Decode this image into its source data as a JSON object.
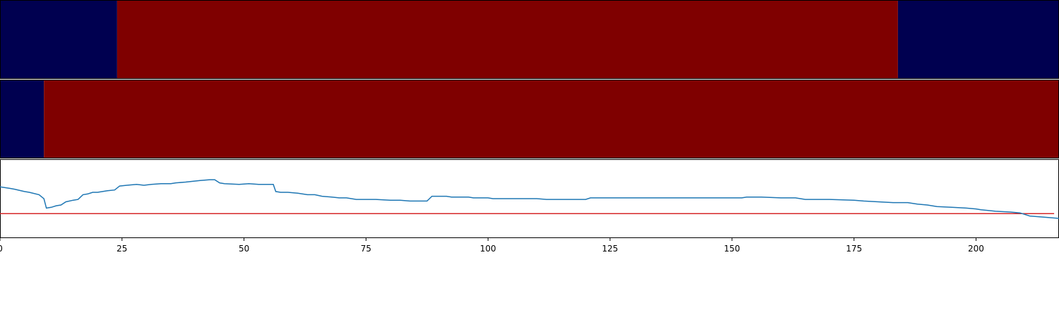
{
  "chart_data": [
    {
      "type": "heatmap",
      "colors": {
        "low": "#000050",
        "high": "#7f0000"
      },
      "xlim": [
        0,
        217
      ],
      "segments": [
        {
          "start": 0,
          "end": 24,
          "state": "low"
        },
        {
          "start": 24,
          "end": 184,
          "state": "high"
        },
        {
          "start": 184,
          "end": 217,
          "state": "low"
        }
      ]
    },
    {
      "type": "heatmap",
      "colors": {
        "low": "#000050",
        "high": "#7f0000"
      },
      "xlim": [
        0,
        217
      ],
      "segments": [
        {
          "start": 0,
          "end": 9,
          "state": "low"
        },
        {
          "start": 9,
          "end": 217,
          "state": "high"
        }
      ]
    },
    {
      "type": "line",
      "xlim": [
        0,
        217
      ],
      "ylim": [
        0,
        100
      ],
      "xticks": [
        0,
        25,
        50,
        75,
        100,
        125,
        150,
        175,
        200
      ],
      "grid": false,
      "series": [
        {
          "color": "#1f77b4",
          "points": [
            [
              0,
              65
            ],
            [
              2,
              63
            ],
            [
              3,
              62
            ],
            [
              5,
              59
            ],
            [
              6,
              58
            ],
            [
              8,
              55
            ],
            [
              9,
              50
            ],
            [
              9.5,
              38
            ],
            [
              10.5,
              39
            ],
            [
              11.5,
              41
            ],
            [
              12.5,
              42
            ],
            [
              13.5,
              46
            ],
            [
              15,
              48
            ],
            [
              16,
              49
            ],
            [
              17,
              55
            ],
            [
              18,
              56
            ],
            [
              19,
              58
            ],
            [
              20,
              58
            ],
            [
              21,
              59
            ],
            [
              22,
              60
            ],
            [
              23.5,
              61
            ],
            [
              24.5,
              66
            ],
            [
              26,
              67
            ],
            [
              28,
              68
            ],
            [
              29.5,
              67
            ],
            [
              31,
              68
            ],
            [
              33,
              69
            ],
            [
              35,
              69
            ],
            [
              36,
              70
            ],
            [
              38,
              71
            ],
            [
              39.5,
              72
            ],
            [
              41,
              73
            ],
            [
              43,
              74
            ],
            [
              44,
              74
            ],
            [
              45,
              70
            ],
            [
              46,
              69
            ],
            [
              49,
              68
            ],
            [
              51,
              69
            ],
            [
              53,
              68
            ],
            [
              56,
              68
            ],
            [
              56.5,
              59
            ],
            [
              57.5,
              58
            ],
            [
              59,
              58
            ],
            [
              61,
              57
            ],
            [
              63,
              55
            ],
            [
              64.5,
              55
            ],
            [
              66,
              53
            ],
            [
              68,
              52
            ],
            [
              69.5,
              51
            ],
            [
              71,
              51
            ],
            [
              72,
              50
            ],
            [
              73,
              49
            ],
            [
              75,
              49
            ],
            [
              77,
              49
            ],
            [
              80,
              48
            ],
            [
              82,
              48
            ],
            [
              84,
              47
            ],
            [
              86,
              47
            ],
            [
              87.5,
              47
            ],
            [
              88.5,
              53
            ],
            [
              89.5,
              53
            ],
            [
              91.5,
              53
            ],
            [
              92.5,
              52
            ],
            [
              94,
              52
            ],
            [
              96,
              52
            ],
            [
              97,
              51
            ],
            [
              100,
              51
            ],
            [
              101,
              50
            ],
            [
              104,
              50
            ],
            [
              108,
              50
            ],
            [
              110,
              50
            ],
            [
              112,
              49
            ],
            [
              116,
              49
            ],
            [
              119,
              49
            ],
            [
              120,
              49
            ],
            [
              121,
              51
            ],
            [
              128,
              51
            ],
            [
              133,
              51
            ],
            [
              140,
              51
            ],
            [
              145,
              51
            ],
            [
              150,
              51
            ],
            [
              152,
              51
            ],
            [
              153,
              52
            ],
            [
              156,
              52
            ],
            [
              160,
              51
            ],
            [
              163,
              51
            ],
            [
              165,
              49
            ],
            [
              170,
              49
            ],
            [
              175,
              48
            ],
            [
              177,
              47
            ],
            [
              180,
              46
            ],
            [
              183,
              45
            ],
            [
              184.5,
              45
            ],
            [
              186,
              45
            ],
            [
              188,
              43
            ],
            [
              190,
              42
            ],
            [
              192,
              40
            ],
            [
              195,
              39
            ],
            [
              198,
              38
            ],
            [
              200,
              37
            ],
            [
              201,
              36
            ],
            [
              204,
              34
            ],
            [
              207,
              33
            ],
            [
              209,
              32
            ],
            [
              211,
              28
            ],
            [
              213,
              27
            ],
            [
              215,
              26
            ],
            [
              217,
              25
            ]
          ]
        }
      ],
      "hline": {
        "y": 31,
        "color": "#d62728"
      }
    }
  ]
}
